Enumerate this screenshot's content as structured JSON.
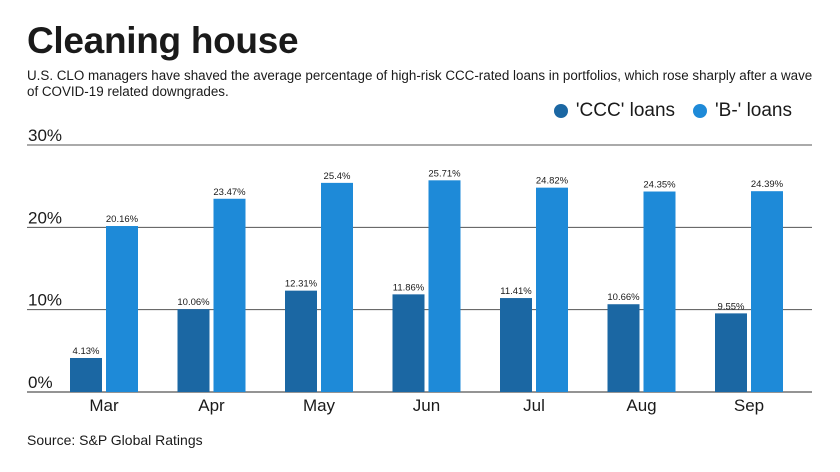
{
  "title": "Cleaning house",
  "subtitle": "U.S. CLO managers have shaved the average percentage of high-risk CCC-rated loans in portfolios, which rose sharply after a wave of COVID-19 related downgrades.",
  "source": "Source: S&P Global Ratings",
  "colors": {
    "ccc": "#1b67a3",
    "b_minus": "#1e8ad8",
    "grid": "#555555"
  },
  "chart_data": {
    "type": "bar",
    "categories": [
      "Mar",
      "Apr",
      "May",
      "Jun",
      "Jul",
      "Aug",
      "Sep"
    ],
    "series": [
      {
        "name": "'CCC' loans",
        "values": [
          4.13,
          10.06,
          12.31,
          11.86,
          11.41,
          10.66,
          9.55
        ],
        "labels": [
          "4.13%",
          "10.06%",
          "12.31%",
          "11.86%",
          "11.41%",
          "10.66%",
          "9.55%"
        ]
      },
      {
        "name": "'B-' loans",
        "values": [
          20.16,
          23.47,
          25.4,
          25.71,
          24.82,
          24.35,
          24.39
        ],
        "labels": [
          "20.16%",
          "23.47%",
          "25.4%",
          "25.71%",
          "24.82%",
          "24.35%",
          "24.39%"
        ]
      }
    ],
    "ylim": [
      0,
      30
    ],
    "yticks": [
      0,
      10,
      20,
      30
    ],
    "ytick_labels": [
      "0%",
      "10%",
      "20%",
      "30%"
    ],
    "grid": true,
    "legend": "top-right"
  }
}
